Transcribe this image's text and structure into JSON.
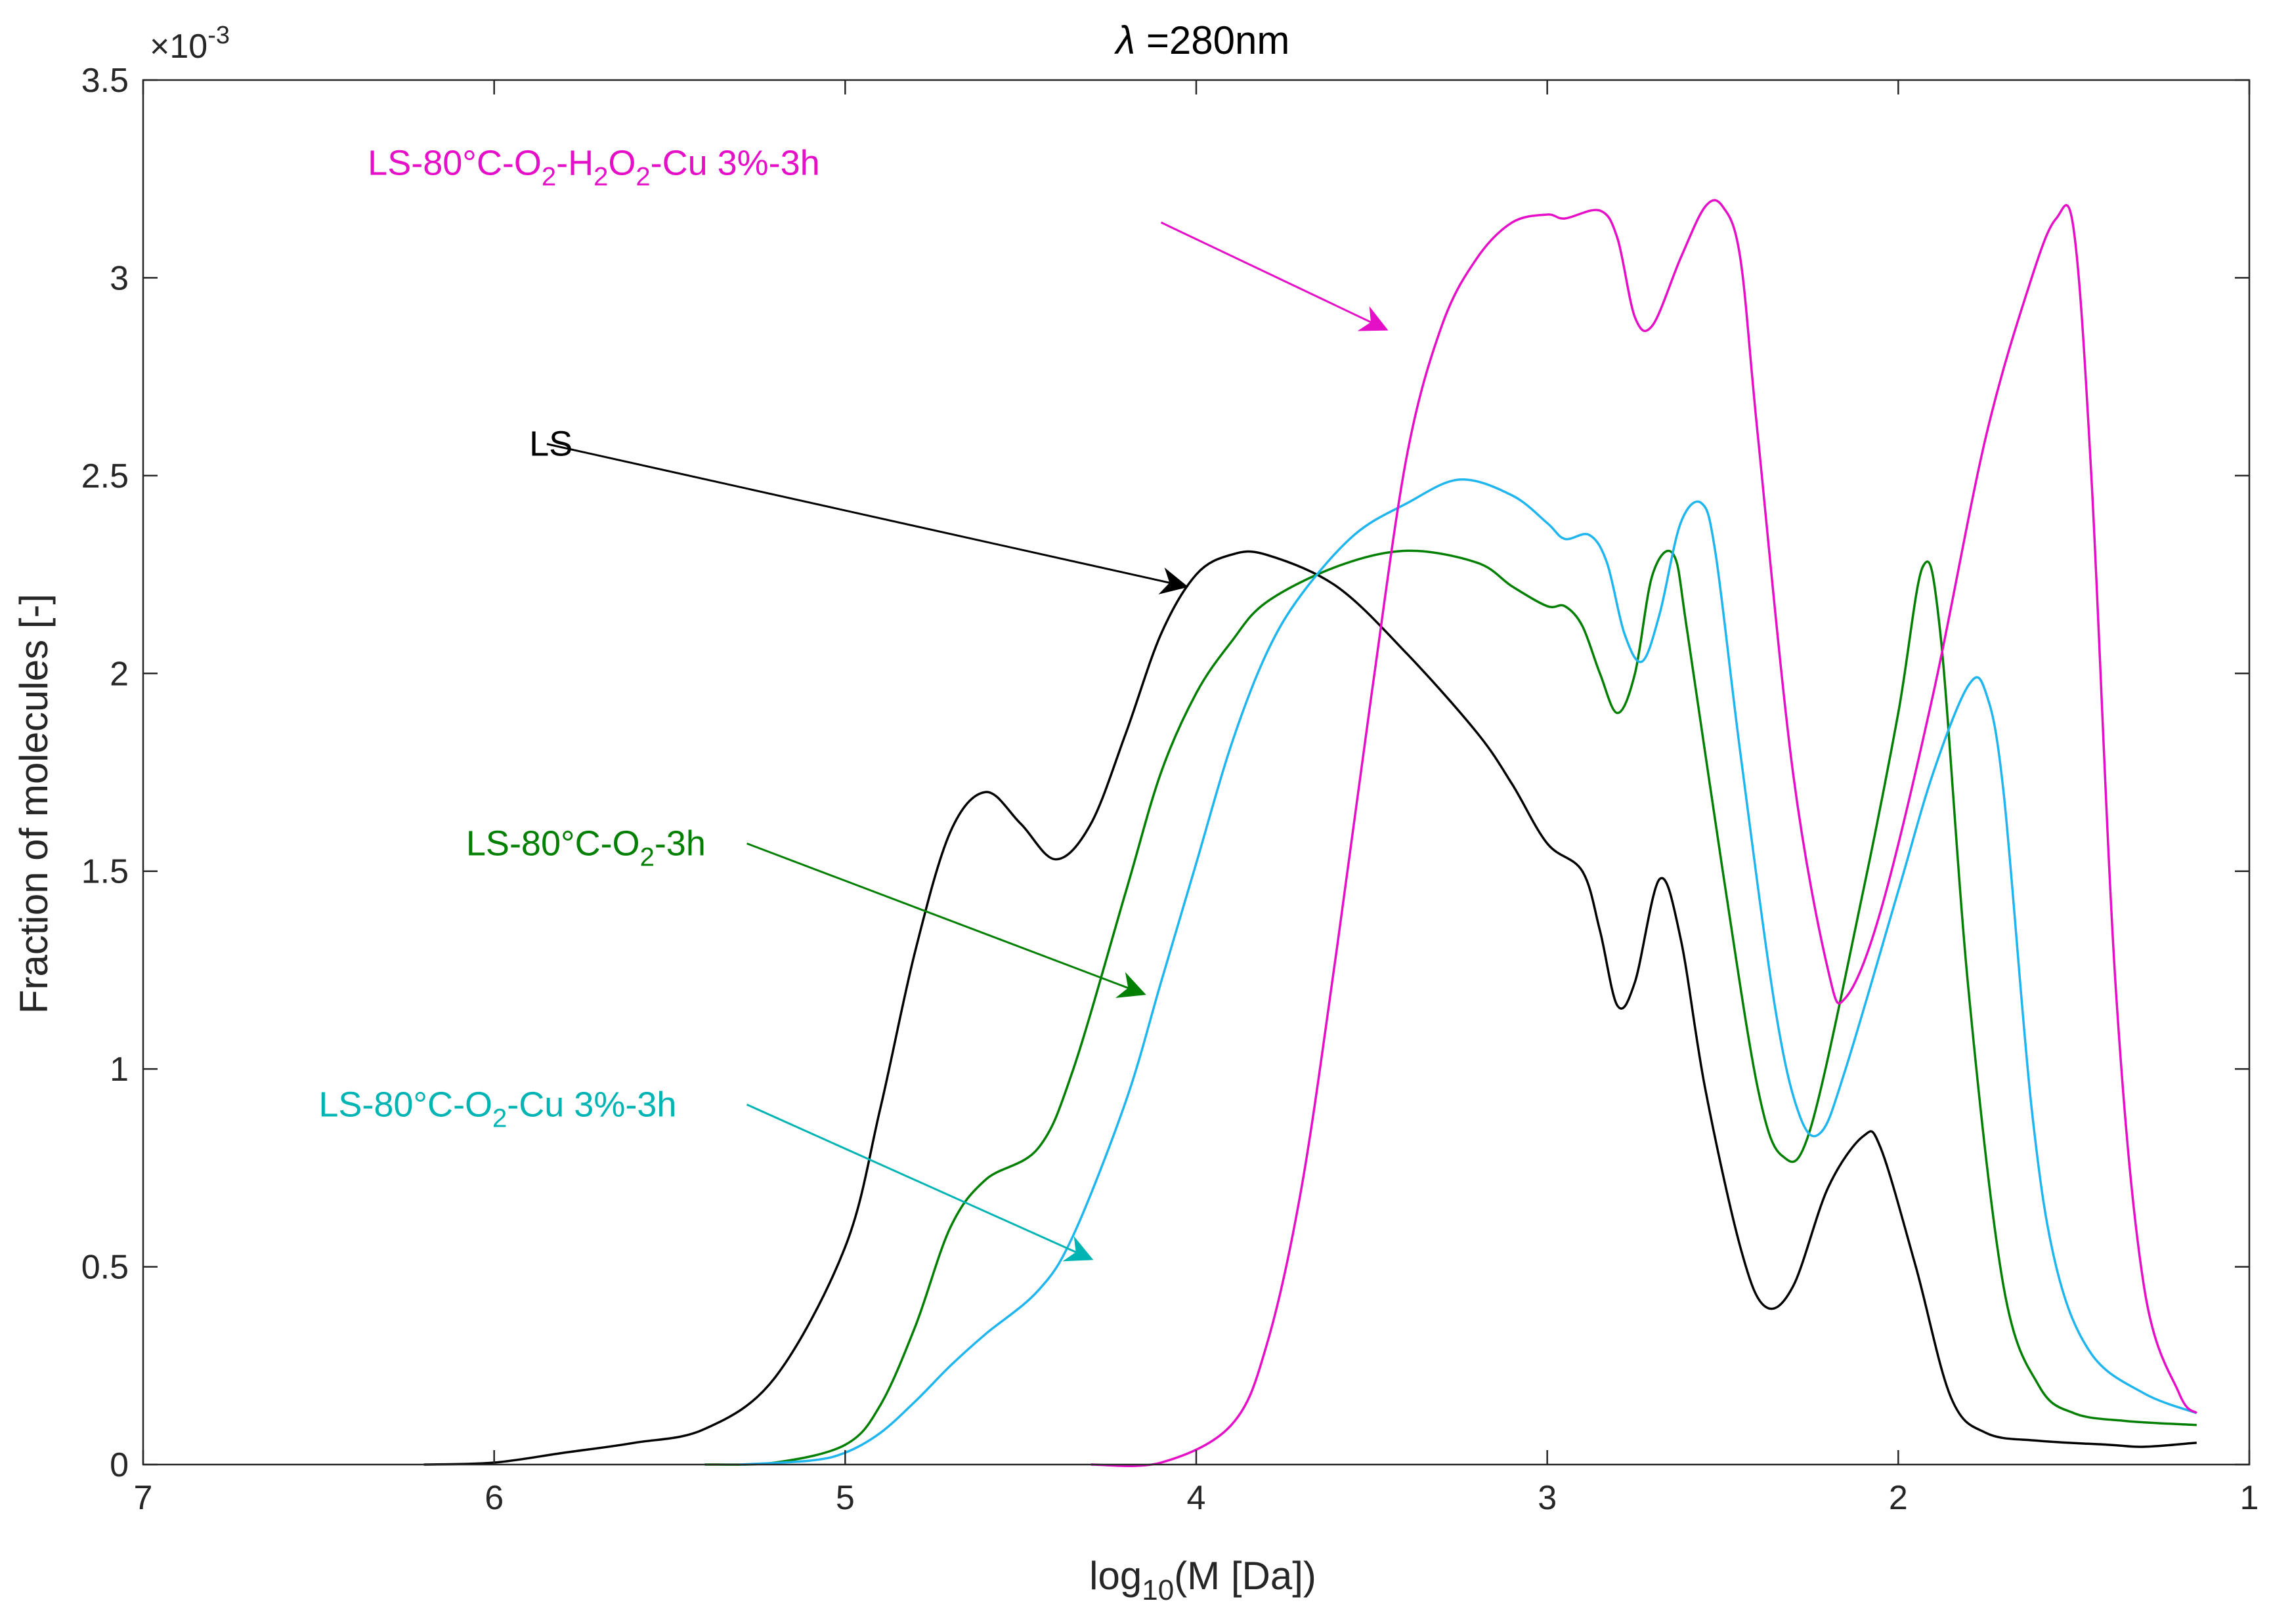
{
  "chart_data": {
    "type": "line",
    "title_symbol": "λ",
    "title_rest": " =280nm",
    "xlabel_main": "log",
    "xlabel_sub": "10",
    "xlabel_rest": "(M [Da])",
    "ylabel": "Fraction of molecules [-]",
    "y_multiplier_base": "×10",
    "y_multiplier_exp": "-3",
    "x_reversed": true,
    "xlim": [
      1,
      7
    ],
    "ylim": [
      0,
      3.5
    ],
    "ylim_display_units": "x1e-3",
    "x_ticks": [
      7,
      6,
      5,
      4,
      3,
      2,
      1
    ],
    "y_ticks": [
      0,
      0.5,
      1,
      1.5,
      2,
      2.5,
      3,
      3.5
    ],
    "y_tick_labels": [
      "0",
      "0.5",
      "1",
      "1.5",
      "2",
      "2.5",
      "3",
      "3.5"
    ],
    "grid": false,
    "series": [
      {
        "name": "LS",
        "color": "#000000",
        "points": [
          [
            6.2,
            0
          ],
          [
            6.0,
            0.005
          ],
          [
            5.8,
            0.03
          ],
          [
            5.6,
            0.055
          ],
          [
            5.4,
            0.09
          ],
          [
            5.2,
            0.22
          ],
          [
            5.0,
            0.55
          ],
          [
            4.9,
            0.9
          ],
          [
            4.8,
            1.3
          ],
          [
            4.7,
            1.6
          ],
          [
            4.6,
            1.7
          ],
          [
            4.5,
            1.62
          ],
          [
            4.4,
            1.53
          ],
          [
            4.3,
            1.62
          ],
          [
            4.2,
            1.85
          ],
          [
            4.1,
            2.1
          ],
          [
            4.0,
            2.25
          ],
          [
            3.9,
            2.3
          ],
          [
            3.8,
            2.3
          ],
          [
            3.6,
            2.22
          ],
          [
            3.4,
            2.05
          ],
          [
            3.2,
            1.85
          ],
          [
            3.1,
            1.72
          ],
          [
            3.0,
            1.57
          ],
          [
            2.9,
            1.5
          ],
          [
            2.85,
            1.35
          ],
          [
            2.8,
            1.16
          ],
          [
            2.75,
            1.22
          ],
          [
            2.68,
            1.48
          ],
          [
            2.62,
            1.33
          ],
          [
            2.55,
            0.95
          ],
          [
            2.45,
            0.55
          ],
          [
            2.38,
            0.4
          ],
          [
            2.3,
            0.45
          ],
          [
            2.2,
            0.7
          ],
          [
            2.1,
            0.83
          ],
          [
            2.05,
            0.8
          ],
          [
            1.95,
            0.5
          ],
          [
            1.85,
            0.17
          ],
          [
            1.75,
            0.08
          ],
          [
            1.6,
            0.06
          ],
          [
            1.4,
            0.05
          ],
          [
            1.3,
            0.045
          ],
          [
            1.15,
            0.055
          ]
        ]
      },
      {
        "name": "LS-80°C-O2-3h",
        "color": "#007f00",
        "points": [
          [
            5.4,
            0
          ],
          [
            5.2,
            0.005
          ],
          [
            5.0,
            0.05
          ],
          [
            4.9,
            0.15
          ],
          [
            4.8,
            0.35
          ],
          [
            4.7,
            0.6
          ],
          [
            4.6,
            0.72
          ],
          [
            4.45,
            0.8
          ],
          [
            4.35,
            1.0
          ],
          [
            4.2,
            1.45
          ],
          [
            4.1,
            1.75
          ],
          [
            4.0,
            1.95
          ],
          [
            3.9,
            2.08
          ],
          [
            3.8,
            2.18
          ],
          [
            3.6,
            2.27
          ],
          [
            3.4,
            2.31
          ],
          [
            3.2,
            2.28
          ],
          [
            3.1,
            2.22
          ],
          [
            3.0,
            2.17
          ],
          [
            2.95,
            2.17
          ],
          [
            2.9,
            2.12
          ],
          [
            2.85,
            2.0
          ],
          [
            2.8,
            1.9
          ],
          [
            2.75,
            2.0
          ],
          [
            2.7,
            2.25
          ],
          [
            2.64,
            2.3
          ],
          [
            2.6,
            2.1
          ],
          [
            2.5,
            1.5
          ],
          [
            2.4,
            0.95
          ],
          [
            2.33,
            0.78
          ],
          [
            2.25,
            0.85
          ],
          [
            2.1,
            1.45
          ],
          [
            2.0,
            1.9
          ],
          [
            1.93,
            2.27
          ],
          [
            1.88,
            2.1
          ],
          [
            1.8,
            1.2
          ],
          [
            1.7,
            0.45
          ],
          [
            1.6,
            0.2
          ],
          [
            1.5,
            0.13
          ],
          [
            1.35,
            0.11
          ],
          [
            1.15,
            0.1
          ]
        ]
      },
      {
        "name": "LS-80°C-O2-Cu 3%-3h",
        "color": "#1fb5ef",
        "points": [
          [
            5.3,
            0
          ],
          [
            5.1,
            0.01
          ],
          [
            5.0,
            0.03
          ],
          [
            4.9,
            0.08
          ],
          [
            4.8,
            0.16
          ],
          [
            4.7,
            0.25
          ],
          [
            4.6,
            0.33
          ],
          [
            4.45,
            0.44
          ],
          [
            4.35,
            0.58
          ],
          [
            4.2,
            0.92
          ],
          [
            4.1,
            1.22
          ],
          [
            4.0,
            1.52
          ],
          [
            3.9,
            1.82
          ],
          [
            3.8,
            2.05
          ],
          [
            3.7,
            2.2
          ],
          [
            3.55,
            2.35
          ],
          [
            3.4,
            2.43
          ],
          [
            3.25,
            2.49
          ],
          [
            3.1,
            2.45
          ],
          [
            3.0,
            2.38
          ],
          [
            2.95,
            2.34
          ],
          [
            2.88,
            2.35
          ],
          [
            2.83,
            2.28
          ],
          [
            2.78,
            2.1
          ],
          [
            2.73,
            2.03
          ],
          [
            2.68,
            2.15
          ],
          [
            2.62,
            2.38
          ],
          [
            2.56,
            2.43
          ],
          [
            2.52,
            2.3
          ],
          [
            2.45,
            1.8
          ],
          [
            2.35,
            1.15
          ],
          [
            2.28,
            0.88
          ],
          [
            2.22,
            0.84
          ],
          [
            2.15,
            1.0
          ],
          [
            2.0,
            1.45
          ],
          [
            1.9,
            1.75
          ],
          [
            1.8,
            1.97
          ],
          [
            1.75,
            1.95
          ],
          [
            1.7,
            1.7
          ],
          [
            1.62,
            0.9
          ],
          [
            1.55,
            0.5
          ],
          [
            1.45,
            0.28
          ],
          [
            1.3,
            0.18
          ],
          [
            1.15,
            0.13
          ]
        ]
      },
      {
        "name": "LS-80°C-O2-H2O2-Cu 3%-3h",
        "color": "#e60fc8",
        "points": [
          [
            4.3,
            0
          ],
          [
            4.1,
            0.005
          ],
          [
            3.9,
            0.1
          ],
          [
            3.8,
            0.3
          ],
          [
            3.7,
            0.7
          ],
          [
            3.6,
            1.3
          ],
          [
            3.5,
            1.95
          ],
          [
            3.4,
            2.55
          ],
          [
            3.3,
            2.88
          ],
          [
            3.2,
            3.05
          ],
          [
            3.1,
            3.14
          ],
          [
            3.0,
            3.16
          ],
          [
            2.95,
            3.15
          ],
          [
            2.85,
            3.17
          ],
          [
            2.8,
            3.1
          ],
          [
            2.75,
            2.9
          ],
          [
            2.7,
            2.88
          ],
          [
            2.62,
            3.05
          ],
          [
            2.55,
            3.18
          ],
          [
            2.5,
            3.18
          ],
          [
            2.45,
            3.05
          ],
          [
            2.4,
            2.6
          ],
          [
            2.3,
            1.75
          ],
          [
            2.2,
            1.25
          ],
          [
            2.15,
            1.18
          ],
          [
            2.05,
            1.4
          ],
          [
            1.9,
            1.95
          ],
          [
            1.75,
            2.6
          ],
          [
            1.62,
            3.0
          ],
          [
            1.55,
            3.15
          ],
          [
            1.5,
            3.12
          ],
          [
            1.45,
            2.5
          ],
          [
            1.38,
            1.2
          ],
          [
            1.3,
            0.45
          ],
          [
            1.2,
            0.18
          ],
          [
            1.15,
            0.13
          ]
        ]
      }
    ],
    "annotations": [
      {
        "id": "ls",
        "color": "#000000",
        "parts": [
          [
            "LS",
            "n"
          ]
        ],
        "text_at": [
          5.9,
          2.58
        ],
        "arrow_from": [
          5.85,
          2.58
        ],
        "arrow_to": [
          4.03,
          2.22
        ]
      },
      {
        "id": "o2",
        "color": "#007f00",
        "parts": [
          [
            "LS-80°C-O",
            "n"
          ],
          [
            "2",
            "sub"
          ],
          [
            "-3h",
            "n"
          ]
        ],
        "text_at": [
          6.08,
          1.57
        ],
        "arrow_from": [
          5.28,
          1.57
        ],
        "arrow_to": [
          4.15,
          1.19
        ]
      },
      {
        "id": "cu",
        "color": "#00b4b4",
        "parts": [
          [
            "LS-80°C-O",
            "n"
          ],
          [
            "2",
            "sub"
          ],
          [
            "-Cu 3%-3h",
            "n"
          ]
        ],
        "text_at": [
          6.5,
          0.91
        ],
        "arrow_from": [
          5.28,
          0.91
        ],
        "arrow_to": [
          4.3,
          0.52
        ]
      },
      {
        "id": "h2o2",
        "color": "#e60fc8",
        "parts": [
          [
            "LS-80°C-O",
            "n"
          ],
          [
            "2",
            "sub"
          ],
          [
            "-H",
            "n"
          ],
          [
            "2",
            "sub"
          ],
          [
            "O",
            "n"
          ],
          [
            "2",
            "sub"
          ],
          [
            "-Cu 3%-3h",
            "n"
          ]
        ],
        "text_at": [
          6.36,
          3.29
        ],
        "arrow_from": [
          4.1,
          3.14
        ],
        "arrow_to": [
          3.46,
          2.87
        ]
      }
    ]
  }
}
